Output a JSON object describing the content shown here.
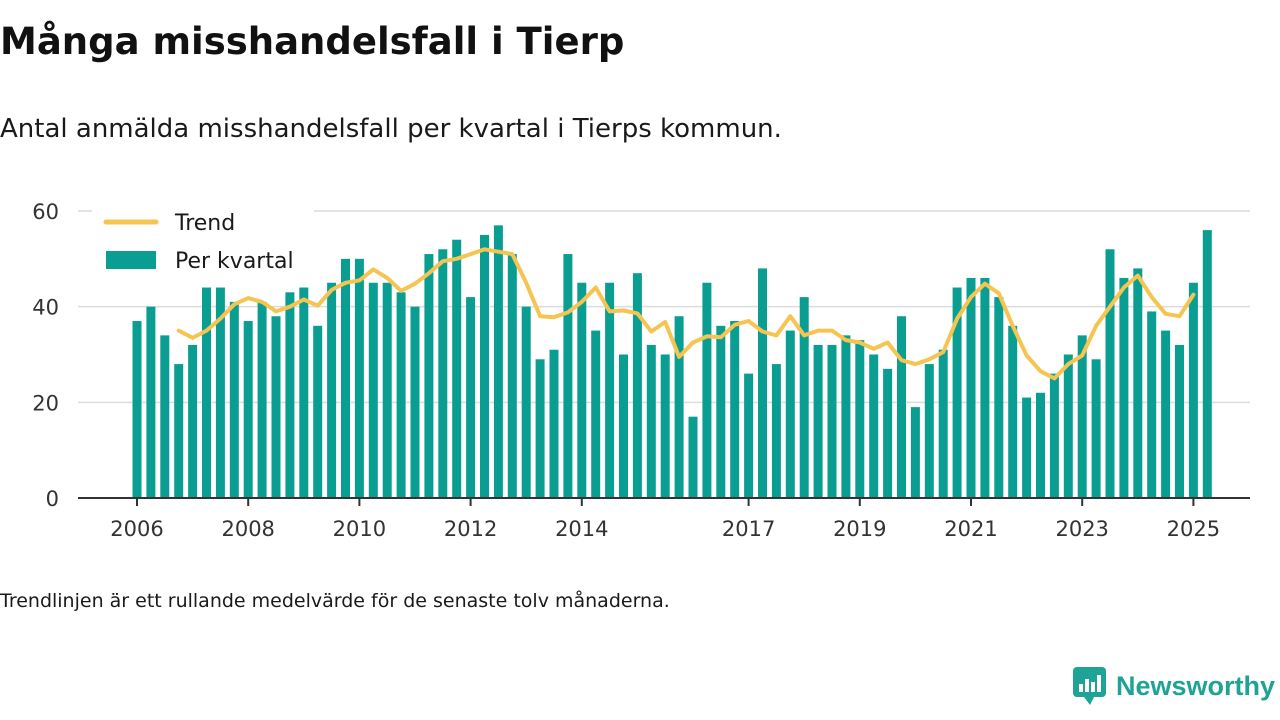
{
  "chart_data": {
    "type": "bar",
    "title": "Många misshandelsfall i Tierp",
    "subtitle": "Antal anmälda misshandelsfall per kvartal i Tierps kommun.",
    "ylim": [
      0,
      60
    ],
    "yticks": [
      0,
      20,
      40,
      60
    ],
    "xticks": [
      {
        "label": "2006",
        "q": 0
      },
      {
        "label": "2008",
        "q": 8
      },
      {
        "label": "2010",
        "q": 16
      },
      {
        "label": "2012",
        "q": 24
      },
      {
        "label": "2014",
        "q": 32
      },
      {
        "label": "2017",
        "q": 44
      },
      {
        "label": "2019",
        "q": 52
      },
      {
        "label": "2021",
        "q": 60
      },
      {
        "label": "2023",
        "q": 68
      },
      {
        "label": "2025",
        "q": 76
      }
    ],
    "grid": true,
    "legend_position": "top-left",
    "series": [
      {
        "name": "Per kvartal",
        "kind": "bar",
        "color": "#0a9e93",
        "values": [
          37,
          40,
          34,
          28,
          32,
          44,
          44,
          41,
          37,
          41,
          38,
          43,
          44,
          36,
          45,
          50,
          50,
          45,
          45,
          43,
          40,
          51,
          52,
          54,
          42,
          55,
          57,
          51,
          40,
          29,
          31,
          51,
          45,
          35,
          45,
          30,
          47,
          32,
          30,
          38,
          17,
          45,
          36,
          37,
          26,
          48,
          28,
          35,
          42,
          32,
          32,
          34,
          33,
          30,
          27,
          38,
          19,
          28,
          31,
          44,
          46,
          46,
          42,
          36,
          21,
          22,
          26,
          30,
          34,
          29,
          52,
          46,
          48,
          39,
          35,
          32,
          45,
          56
        ]
      },
      {
        "name": "Trend",
        "kind": "line",
        "color": "#f5c451",
        "start_q": 3,
        "values": [
          35,
          33.5,
          35,
          37.5,
          40.5,
          41.8,
          41,
          39,
          40,
          41.5,
          40.2,
          43.5,
          45,
          45.5,
          47.8,
          46,
          43.3,
          44.8,
          47,
          49.5,
          50,
          51,
          52,
          51.5,
          51,
          45,
          38,
          37.8,
          38.8,
          41,
          44,
          39,
          39.2,
          38.6,
          34.8,
          36.8,
          29.5,
          32.5,
          33.8,
          33.6,
          36.2,
          37,
          34.8,
          34,
          38,
          34,
          35,
          35,
          33,
          32.5,
          31.2,
          32.5,
          28.8,
          28,
          29,
          30.5,
          37.5,
          42,
          44.8,
          42.8,
          36,
          29.8,
          26.5,
          25,
          28,
          29.8,
          36,
          40,
          44,
          46.5,
          42,
          38.5,
          38,
          42.5
        ]
      }
    ]
  },
  "footnote": "Trendlinjen är ett rullande medelvärde för de senaste tolv månaderna.",
  "brand": {
    "name": "Newsworthy",
    "color": "#1ea396",
    "icon": "newsworthy-logo-icon"
  }
}
